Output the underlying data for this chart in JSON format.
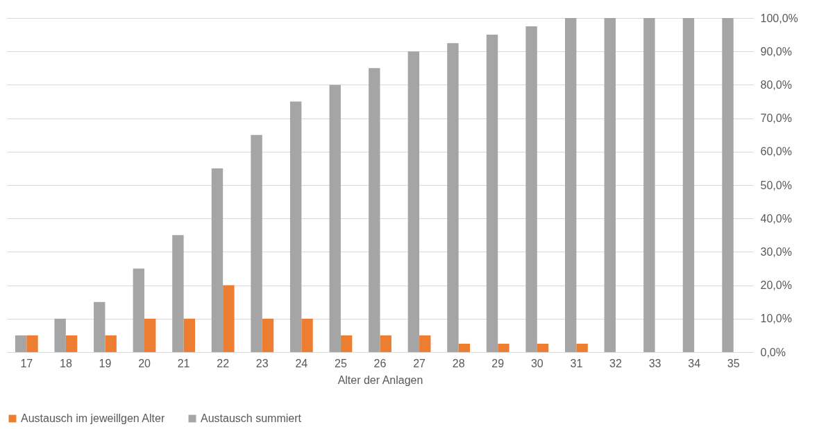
{
  "chart_data": {
    "type": "bar",
    "xlabel": "Alter der Anlagen",
    "categories": [
      "17",
      "18",
      "19",
      "20",
      "21",
      "22",
      "23",
      "24",
      "25",
      "26",
      "27",
      "28",
      "29",
      "30",
      "31",
      "32",
      "33",
      "34",
      "35"
    ],
    "series": [
      {
        "name": "Austausch summiert",
        "color": "#a5a5a5",
        "values": [
          5,
          10,
          15,
          25,
          35,
          55,
          65,
          75,
          80,
          85,
          90,
          92.5,
          95,
          97.5,
          100,
          100,
          100,
          100,
          100
        ]
      },
      {
        "name": "Austausch im jeweillgen Alter",
        "color": "#ed7d31",
        "values": [
          5,
          5,
          5,
          10,
          10,
          20,
          10,
          10,
          5,
          5,
          5,
          2.5,
          2.5,
          2.5,
          2.5,
          0,
          0,
          0,
          0
        ]
      }
    ],
    "ylim": [
      0,
      100
    ],
    "yticks": [
      {
        "value": 0,
        "label": "0,0%"
      },
      {
        "value": 10,
        "label": "10,0%"
      },
      {
        "value": 20,
        "label": "20,0%"
      },
      {
        "value": 30,
        "label": "30,0%"
      },
      {
        "value": 40,
        "label": "40,0%"
      },
      {
        "value": 50,
        "label": "50,0%"
      },
      {
        "value": 60,
        "label": "60,0%"
      },
      {
        "value": 70,
        "label": "70,0%"
      },
      {
        "value": 80,
        "label": "80,0%"
      },
      {
        "value": 90,
        "label": "90,0%"
      },
      {
        "value": 100,
        "label": "100,0%"
      }
    ],
    "grid": "y",
    "legend": "bottom"
  }
}
